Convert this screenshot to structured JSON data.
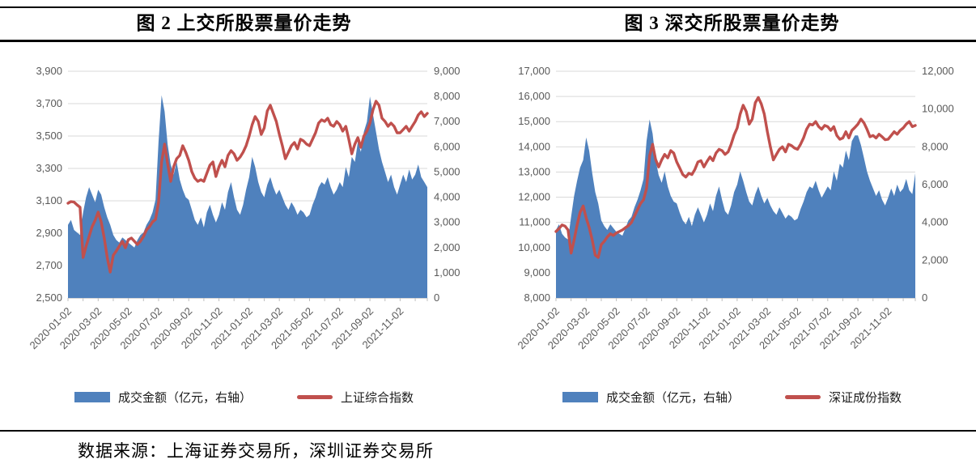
{
  "source_note": "数据来源：上海证券交易所，深圳证券交易所",
  "colors": {
    "volume_fill": "#4f81bd",
    "index_line": "#c0504d",
    "gridline": "#d9d9d9",
    "axis_line": "#bfbfbf",
    "axis_text": "#595959",
    "rule": "#000000"
  },
  "chart_data": [
    {
      "type": "area+line combo",
      "title": "图 2 上交所股票量价走势",
      "legend_position": "bottom",
      "grid": true,
      "x_tick_labels": [
        "2020-01-02",
        "2020-03-02",
        "2020-05-02",
        "2020-07-02",
        "2020-09-02",
        "2020-11-02",
        "2021-01-02",
        "2021-03-02",
        "2021-05-02",
        "2021-07-02",
        "2021-09-02",
        "2021-11-02"
      ],
      "left_axis": {
        "min": 2500,
        "max": 3900,
        "step": 200,
        "tick_labels": [
          "2,500",
          "2,700",
          "2,900",
          "3,100",
          "3,300",
          "3,500",
          "3,700",
          "3,900"
        ]
      },
      "right_axis": {
        "min": 0,
        "max": 9000,
        "step": 1000,
        "tick_labels": [
          "0",
          "1,000",
          "2,000",
          "3,000",
          "4,000",
          "5,000",
          "6,000",
          "7,000",
          "8,000",
          "9,000"
        ]
      },
      "series": [
        {
          "name": "成交金额（亿元，右轴）",
          "type": "area",
          "axis": "right",
          "values": [
            2900,
            3100,
            2700,
            2600,
            2500,
            3400,
            4000,
            4400,
            4100,
            3800,
            4300,
            4100,
            3600,
            3200,
            2900,
            2500,
            2300,
            2200,
            2400,
            2300,
            2200,
            2100,
            2000,
            2300,
            2500,
            2600,
            2900,
            3100,
            3400,
            3900,
            6200,
            8050,
            7400,
            6100,
            5300,
            4900,
            5400,
            4700,
            4300,
            4000,
            3900,
            3500,
            3100,
            2900,
            3200,
            2800,
            3400,
            3700,
            3300,
            3000,
            3300,
            3800,
            3500,
            4200,
            4600,
            4000,
            3500,
            3300,
            3700,
            4300,
            4800,
            5600,
            5200,
            4600,
            4200,
            4000,
            4500,
            4800,
            4400,
            4100,
            4300,
            4000,
            3700,
            3500,
            3800,
            3600,
            3300,
            3500,
            3400,
            3200,
            3300,
            3700,
            4000,
            4400,
            4600,
            4500,
            4800,
            4400,
            4100,
            4300,
            4600,
            4400,
            5200,
            4800,
            5600,
            5400,
            6200,
            5800,
            6600,
            7000,
            8000,
            7300,
            6600,
            5900,
            5400,
            5000,
            4600,
            4900,
            4400,
            4100,
            4500,
            4900,
            4600,
            5100,
            4700,
            4900,
            5300,
            4800,
            4600,
            4400
          ]
        },
        {
          "name": "上证综合指数",
          "type": "line",
          "axis": "left",
          "values": [
            3085,
            3095,
            3092,
            3075,
            3060,
            2750,
            2820,
            2880,
            2940,
            2980,
            3030,
            2970,
            2870,
            2750,
            2660,
            2764,
            2790,
            2820,
            2850,
            2810,
            2860,
            2870,
            2850,
            2830,
            2850,
            2880,
            2920,
            2940,
            2970,
            2985,
            3090,
            3340,
            3450,
            3330,
            3220,
            3310,
            3360,
            3380,
            3440,
            3400,
            3350,
            3280,
            3240,
            3220,
            3230,
            3220,
            3270,
            3320,
            3340,
            3250,
            3310,
            3350,
            3310,
            3380,
            3410,
            3390,
            3350,
            3370,
            3400,
            3440,
            3500,
            3570,
            3620,
            3590,
            3510,
            3550,
            3655,
            3690,
            3640,
            3590,
            3510,
            3440,
            3360,
            3400,
            3440,
            3460,
            3420,
            3480,
            3470,
            3450,
            3440,
            3480,
            3520,
            3580,
            3600,
            3590,
            3610,
            3570,
            3560,
            3590,
            3570,
            3530,
            3560,
            3480,
            3390,
            3450,
            3490,
            3430,
            3500,
            3530,
            3580,
            3660,
            3715,
            3690,
            3610,
            3590,
            3560,
            3580,
            3560,
            3520,
            3520,
            3540,
            3560,
            3530,
            3560,
            3590,
            3630,
            3650,
            3620,
            3640
          ]
        }
      ]
    },
    {
      "type": "area+line combo",
      "title": "图 3 深交所股票量价走势",
      "legend_position": "bottom",
      "grid": true,
      "x_tick_labels": [
        "2020-01-02",
        "2020-03-02",
        "2020-05-02",
        "2020-07-02",
        "2020-09-02",
        "2020-11-02",
        "2021-01-02",
        "2021-03-02",
        "2021-05-02",
        "2021-07-02",
        "2021-09-02",
        "2021-11-02"
      ],
      "left_axis": {
        "min": 8000,
        "max": 17000,
        "step": 1000,
        "tick_labels": [
          "8,000",
          "9,000",
          "10,000",
          "11,000",
          "12,000",
          "13,000",
          "14,000",
          "15,000",
          "16,000",
          "17,000"
        ]
      },
      "right_axis": {
        "min": 0,
        "max": 12000,
        "step": 2000,
        "tick_labels": [
          "0",
          "2,000",
          "4,000",
          "6,000",
          "8,000",
          "10,000",
          "12,000"
        ]
      },
      "series": [
        {
          "name": "成交金额（亿元，右轴）",
          "type": "area",
          "axis": "right",
          "values": [
            3600,
            3900,
            3400,
            3200,
            3100,
            4300,
            5400,
            6200,
            6900,
            7300,
            8500,
            7800,
            6600,
            5600,
            5000,
            4100,
            3800,
            3600,
            3900,
            3700,
            3500,
            3400,
            3300,
            3700,
            4100,
            4300,
            4800,
            5200,
            5700,
            6300,
            8300,
            9450,
            8700,
            7300,
            6500,
            6100,
            6700,
            5900,
            5400,
            5100,
            5000,
            4500,
            4100,
            3900,
            4300,
            3800,
            4400,
            4800,
            4400,
            4000,
            4400,
            5000,
            4600,
            5400,
            5900,
            5200,
            4600,
            4400,
            4900,
            5600,
            6000,
            6700,
            6200,
            5600,
            5100,
            4900,
            5500,
            5900,
            5400,
            5000,
            5300,
            4900,
            4600,
            4400,
            4800,
            4500,
            4200,
            4400,
            4300,
            4100,
            4200,
            4700,
            5100,
            5600,
            5900,
            5800,
            6200,
            5700,
            5300,
            5600,
            5900,
            5700,
            6700,
            6200,
            7100,
            6900,
            7800,
            7300,
            8300,
            8600,
            8600,
            8100,
            7400,
            6700,
            6200,
            5800,
            5400,
            5700,
            5200,
            4900,
            5300,
            5800,
            5400,
            6000,
            5600,
            5800,
            6300,
            5700,
            5500,
            6600
          ]
        },
        {
          "name": "深证成份指数",
          "type": "line",
          "axis": "left",
          "values": [
            10640,
            10750,
            10900,
            10850,
            10700,
            9780,
            10300,
            10900,
            11400,
            11650,
            11180,
            10800,
            10300,
            9700,
            9610,
            10120,
            10250,
            10420,
            10550,
            10480,
            10580,
            10640,
            10700,
            10790,
            10870,
            11000,
            11250,
            11500,
            11750,
            11900,
            12350,
            13650,
            14100,
            13500,
            13200,
            13480,
            13700,
            13560,
            13850,
            13750,
            13400,
            13150,
            12900,
            12800,
            12950,
            12900,
            13100,
            13400,
            13450,
            13200,
            13420,
            13600,
            13450,
            13750,
            13900,
            13850,
            13700,
            13800,
            14100,
            14470,
            14750,
            15300,
            15650,
            15400,
            14900,
            15100,
            15750,
            15960,
            15700,
            15300,
            14600,
            14000,
            13480,
            13700,
            13900,
            14000,
            13800,
            14100,
            14050,
            13950,
            13900,
            14100,
            14350,
            14700,
            14900,
            14870,
            15000,
            14800,
            14700,
            14850,
            14800,
            14650,
            14800,
            14450,
            14300,
            14350,
            14600,
            14350,
            14650,
            14770,
            14900,
            15100,
            14950,
            14700,
            14400,
            14450,
            14350,
            14500,
            14400,
            14280,
            14300,
            14450,
            14600,
            14500,
            14650,
            14750,
            14900,
            15000,
            14800,
            14850
          ]
        }
      ]
    }
  ]
}
